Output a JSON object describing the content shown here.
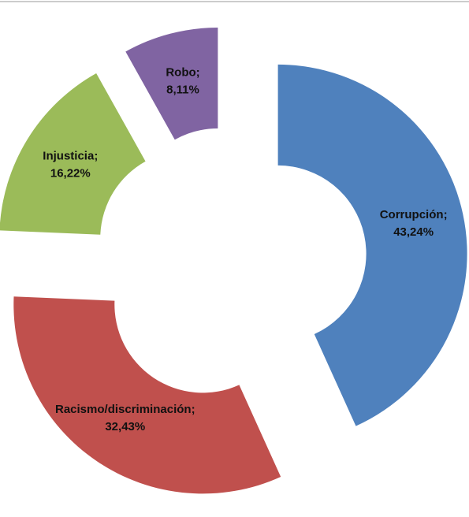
{
  "chart_data": {
    "type": "donut",
    "categories": [
      "Corrupción",
      "Racismo/discriminación",
      "Injusticia",
      "Robo"
    ],
    "values": [
      43.24,
      32.43,
      16.22,
      8.11
    ],
    "value_labels": [
      "43,24%",
      "32,43%",
      "16,22%",
      "8,11%"
    ],
    "label_separator": ";",
    "colors": [
      "#4f81bd",
      "#c0504d",
      "#9bbb59",
      "#8064a2"
    ]
  }
}
